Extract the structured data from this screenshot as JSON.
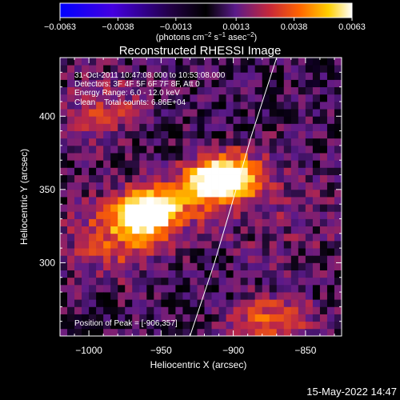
{
  "chart_data": {
    "type": "heatmap",
    "title": "Reconstructed RHESSI Image",
    "xlabel": "Heliocentric X (arcsec)",
    "ylabel": "Heliocentric Y (arcsec)",
    "xlim": [
      -1020,
      -825
    ],
    "ylim": [
      250,
      440
    ],
    "xticks": [
      -1000,
      -950,
      -900,
      -850
    ],
    "xtick_labels": [
      "−1000",
      "−950",
      "−900",
      "−850"
    ],
    "yticks": [
      300,
      350,
      400
    ],
    "ytick_labels": [
      "300",
      "350",
      "400"
    ],
    "colorbar": {
      "range": [
        -0.0063,
        0.0063
      ],
      "ticks": [
        -0.0063,
        -0.0038,
        -0.0013,
        0.0013,
        0.0038,
        0.0063
      ],
      "tick_labels": [
        "−0.0063",
        "−0.0038",
        "−0.0013",
        "0.0013",
        "0.0038",
        "0.0063"
      ],
      "unit": "(photons cm",
      "unit_sup1": "−2",
      "unit_mid": " s",
      "unit_sup2": "−1",
      "unit_end": " asec",
      "unit_sup3": "−2",
      "unit_close": ")",
      "colors": [
        "#0000ff",
        "#5a00c8",
        "#000000",
        "#5a1a8a",
        "#c82838",
        "#ff6400",
        "#ffc800",
        "#ffffff"
      ]
    },
    "sources": [
      {
        "x": -962,
        "y": 333,
        "peak": 0.0056
      },
      {
        "x": -906,
        "y": 357,
        "peak": 0.0063
      }
    ],
    "limb_curve": [
      [
        -930,
        250
      ],
      [
        -913,
        300
      ],
      [
        -901,
        340
      ],
      [
        -888,
        385
      ],
      [
        -870,
        440
      ]
    ],
    "annotations": {
      "time": "31-Oct-2011 10:47:08.000 to 10:53:08.000",
      "detectors": "Detectors: 3F 4F 5F 6F 7F 8F, Att 0",
      "energy": "Energy Range: 6.0 - 12.0 keV",
      "clean": "Clean    Total counts: 6.86E+04",
      "peak": "Position of Peak = [-906,357]"
    },
    "grid": false,
    "legend": "colorbar-top"
  },
  "footer": {
    "date": "15-May-2022 14:47"
  }
}
